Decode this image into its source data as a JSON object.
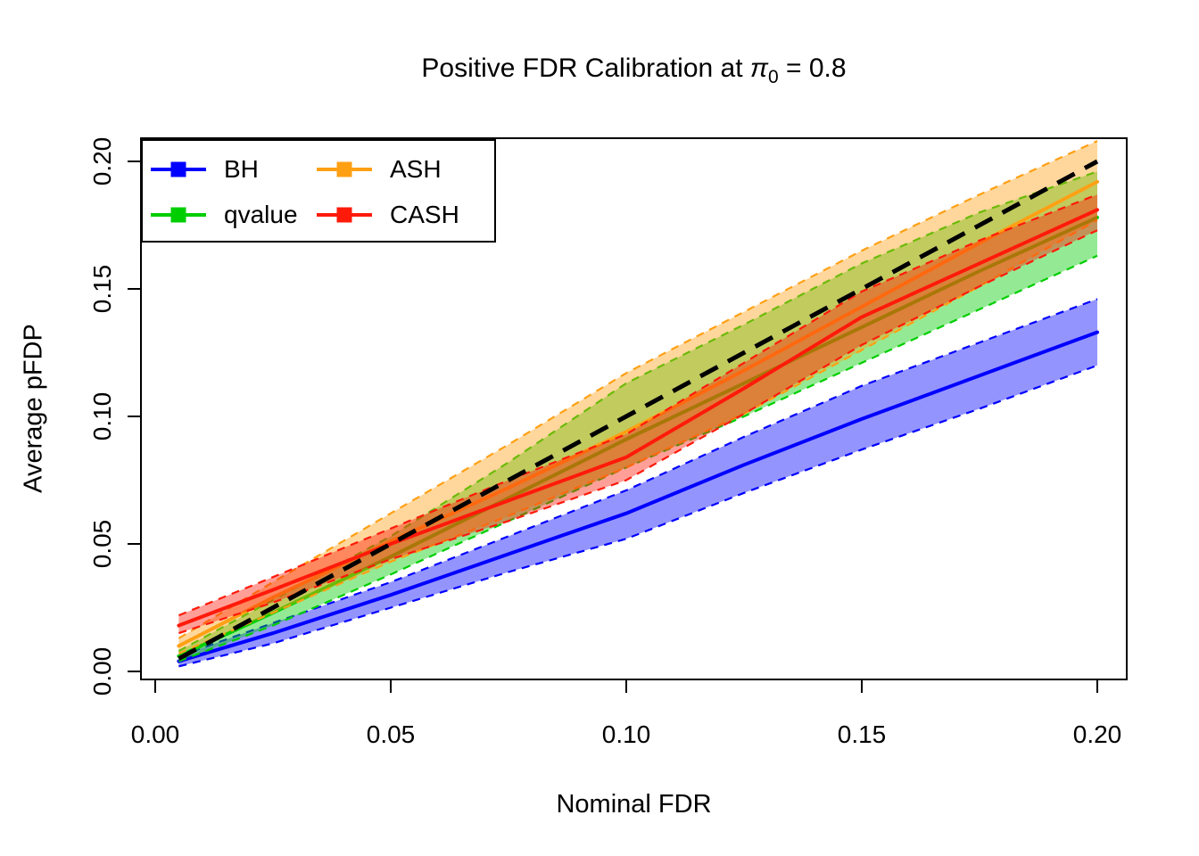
{
  "title": {
    "text_before": "Positive FDR Calibration at ",
    "pi_symbol": "π",
    "pi_subscript": "0",
    "text_after": " = 0.8"
  },
  "axes": {
    "x": {
      "label": "Nominal FDR",
      "tick_values": [
        0,
        0.05,
        0.1,
        0.15,
        0.2
      ],
      "tick_labels": [
        "0.00",
        "0.05",
        "0.10",
        "0.15",
        "0.20"
      ]
    },
    "y": {
      "label": "Average pFDP",
      "tick_values": [
        0,
        0.05,
        0.1,
        0.15,
        0.2
      ],
      "tick_labels": [
        "0.00",
        "0.05",
        "0.10",
        "0.15",
        "0.20"
      ]
    }
  },
  "chart_data": {
    "type": "line",
    "title": "Positive FDR Calibration at π0 = 0.8",
    "xlabel": "Nominal FDR",
    "ylabel": "Average pFDP",
    "xlim": [
      0,
      0.2
    ],
    "ylim": [
      0,
      0.2
    ],
    "grid": false,
    "legend_position": "topleft",
    "band_opacity": 0.42,
    "x": [
      0.005,
      0.025,
      0.05,
      0.075,
      0.1,
      0.125,
      0.15,
      0.175,
      0.2
    ],
    "reference_line": {
      "color": "#000000",
      "dashed": true,
      "x": [
        0.005,
        0.2
      ],
      "y": [
        0.005,
        0.2
      ]
    },
    "series": [
      {
        "name": "BH",
        "color": "#0000FF",
        "mean": [
          0.004,
          0.015,
          0.03,
          0.046,
          0.062,
          0.081,
          0.099,
          0.116,
          0.133
        ],
        "lower": [
          0.002,
          0.011,
          0.025,
          0.039,
          0.052,
          0.07,
          0.087,
          0.103,
          0.12
        ],
        "upper": [
          0.006,
          0.019,
          0.035,
          0.053,
          0.071,
          0.092,
          0.112,
          0.129,
          0.146
        ]
      },
      {
        "name": "qvalue",
        "color": "#00CE00",
        "mean": [
          0.006,
          0.023,
          0.045,
          0.068,
          0.091,
          0.113,
          0.135,
          0.157,
          0.178
        ],
        "lower": [
          0.004,
          0.018,
          0.038,
          0.059,
          0.08,
          0.1,
          0.121,
          0.142,
          0.163
        ],
        "upper": [
          0.008,
          0.028,
          0.053,
          0.082,
          0.113,
          0.136,
          0.16,
          0.18,
          0.196
        ]
      },
      {
        "name": "ASH",
        "color": "#FFA014",
        "mean": [
          0.01,
          0.029,
          0.051,
          0.072,
          0.094,
          0.118,
          0.143,
          0.168,
          0.192
        ],
        "lower": [
          0.007,
          0.023,
          0.043,
          0.061,
          0.08,
          0.101,
          0.126,
          0.151,
          0.177
        ],
        "upper": [
          0.013,
          0.035,
          0.062,
          0.089,
          0.117,
          0.141,
          0.165,
          0.187,
          0.208
        ]
      },
      {
        "name": "CASH",
        "color": "#FF1A0A",
        "mean": [
          0.018,
          0.032,
          0.05,
          0.067,
          0.084,
          0.111,
          0.139,
          0.16,
          0.181
        ],
        "lower": [
          0.015,
          0.027,
          0.044,
          0.059,
          0.075,
          0.101,
          0.128,
          0.151,
          0.173
        ],
        "upper": [
          0.022,
          0.037,
          0.056,
          0.075,
          0.093,
          0.121,
          0.149,
          0.169,
          0.187
        ]
      }
    ]
  },
  "legend": {
    "items": [
      "BH",
      "qvalue",
      "ASH",
      "CASH"
    ]
  }
}
